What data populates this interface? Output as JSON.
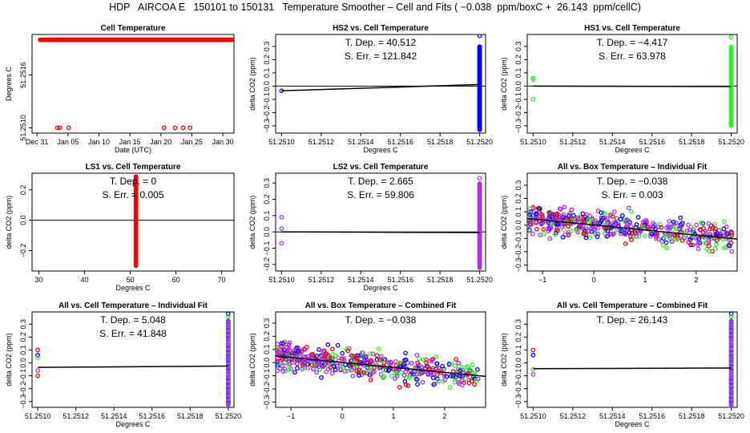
{
  "header": {
    "title": "HDP   AIRCOA E   150101 to 150131   Temperature Smoother – Cell and Fits ( −0.038  ppm/boxC +  26.143  ppm/cellC)"
  },
  "colors": {
    "red": "#ff0000",
    "blue": "#0000ff",
    "green": "#33ee33",
    "purple": "#aa33ee",
    "navy": "#000080"
  },
  "chart_data": [
    {
      "type": "scatter",
      "title": "Cell Temperature",
      "xlabel": "Date (UTC)",
      "ylabel": "Degrees C",
      "x_ticks": [
        "Dec 31",
        "Jan 05",
        "Jan 10",
        "Jan 15",
        "Jan 20",
        "Jan 25",
        "Jan 30"
      ],
      "x_tick_values": [
        0,
        5,
        10,
        15,
        20,
        25,
        30
      ],
      "y_ticks": [
        "51.2510",
        "51.2516"
      ],
      "y_tick_values": [
        51.251,
        51.2516
      ],
      "xlim": [
        -0.8,
        31.8
      ],
      "ylim": [
        51.25094,
        51.25206
      ],
      "series": [
        {
          "color": "red",
          "marker": "circle",
          "dense_x_range": [
            0.5,
            31.5
          ],
          "dense_y": 51.252,
          "points": [
            [
              3.3,
              51.251
            ],
            [
              3.7,
              51.251
            ],
            [
              5.1,
              51.251
            ],
            [
              20.5,
              51.251
            ],
            [
              22.3,
              51.251
            ],
            [
              23.6,
              51.251
            ],
            [
              24.7,
              51.251
            ]
          ]
        }
      ],
      "annotations": []
    },
    {
      "type": "scatter",
      "title": "HS2 vs. Cell Temperature",
      "xlabel": "Degrees C",
      "ylabel": "delta CO2 (ppm)",
      "x_ticks": [
        "51.2510",
        "51.2512",
        "51.2514",
        "51.2516",
        "51.2518",
        "51.2520"
      ],
      "x_tick_values": [
        51.251,
        51.2512,
        51.2514,
        51.2516,
        51.2518,
        51.252
      ],
      "y_ticks": [
        "−0.3",
        "−0.2",
        "−0.1",
        "0.0",
        "0.1",
        "0.2",
        "0.3"
      ],
      "y_tick_values": [
        -0.3,
        -0.2,
        -0.1,
        0,
        0.1,
        0.2,
        0.3
      ],
      "xlim": [
        51.25097,
        51.25203
      ],
      "ylim": [
        -0.355,
        0.39
      ],
      "hline": 0,
      "fit_line": [
        [
          51.251,
          -0.035
        ],
        [
          51.252,
          0.012
        ]
      ],
      "series": [
        {
          "color": "blue",
          "marker": "circle",
          "points": [
            [
              51.251,
              -0.035
            ]
          ],
          "column_x": 51.252,
          "column_y_range": [
            -0.33,
            0.3
          ],
          "column_extra": [
            0.38
          ]
        }
      ],
      "annotations": [
        "T. Dep. = 40.512",
        "S. Err. = 121.842"
      ]
    },
    {
      "type": "scatter",
      "title": "HS1 vs. Cell Temperature",
      "xlabel": "Degrees C",
      "ylabel": "delta CO2 (ppm)",
      "x_ticks": [
        "51.2510",
        "51.2512",
        "51.2514",
        "51.2516",
        "51.2518",
        "51.2520"
      ],
      "x_tick_values": [
        51.251,
        51.2512,
        51.2514,
        51.2516,
        51.2518,
        51.252
      ],
      "y_ticks": [
        "−0.3",
        "−0.2",
        "−0.1",
        "0.0",
        "0.1",
        "0.2",
        "0.3"
      ],
      "y_tick_values": [
        -0.3,
        -0.2,
        -0.1,
        0,
        0.1,
        0.2,
        0.3
      ],
      "xlim": [
        51.25097,
        51.25203
      ],
      "ylim": [
        -0.355,
        0.39
      ],
      "hline": 0,
      "fit_line": [
        [
          51.251,
          0.0
        ],
        [
          51.252,
          -0.003
        ]
      ],
      "series": [
        {
          "color": "green",
          "marker": "circle",
          "points": [
            [
              51.251,
              0.05
            ],
            [
              51.251,
              0.06
            ],
            [
              51.251,
              -0.1
            ]
          ],
          "column_x": 51.252,
          "column_y_range": [
            -0.3,
            0.3
          ],
          "column_extra": [
            0.37
          ]
        }
      ],
      "annotations": [
        "T. Dep. = −4.417",
        "S. Err. = 63.978"
      ]
    },
    {
      "type": "scatter",
      "title": "LS1 vs. Cell Temperature",
      "xlabel": "Degrees C",
      "ylabel": "delta CO2 (ppm)",
      "x_ticks": [
        "30",
        "40",
        "50",
        "60",
        "70"
      ],
      "x_tick_values": [
        30,
        40,
        50,
        60,
        70
      ],
      "y_ticks": [
        "−0.2",
        "0.0",
        "0.2"
      ],
      "y_tick_values": [
        -0.2,
        0,
        0.2
      ],
      "xlim": [
        28.5,
        72.7
      ],
      "ylim": [
        -0.335,
        0.31
      ],
      "hline": 0,
      "fit_line": null,
      "series": [
        {
          "color": "red",
          "marker": "circle",
          "points": [],
          "column_x": 51.252,
          "column_y_range": [
            -0.3,
            0.29
          ],
          "column_extra": []
        }
      ],
      "annotations": [
        "T. Dep. = 0",
        "S. Err. = 0.005"
      ]
    },
    {
      "type": "scatter",
      "title": "LS2 vs. Cell Temperature",
      "xlabel": "Degrees C",
      "ylabel": "delta CO2 (ppm)",
      "x_ticks": [
        "51.2510",
        "51.2512",
        "51.2514",
        "51.2516",
        "51.2518",
        "51.2520"
      ],
      "x_tick_values": [
        51.251,
        51.2512,
        51.2514,
        51.2516,
        51.2518,
        51.252
      ],
      "y_ticks": [
        "−0.2",
        "−0.1",
        "0.0",
        "0.1",
        "0.2",
        "0.3"
      ],
      "y_tick_values": [
        -0.2,
        -0.1,
        0,
        0.1,
        0.2,
        0.3
      ],
      "xlim": [
        51.25097,
        51.25203
      ],
      "ylim": [
        -0.24,
        0.36
      ],
      "hline": 0,
      "fit_line": [
        [
          51.251,
          0.0
        ],
        [
          51.252,
          -0.004
        ]
      ],
      "series": [
        {
          "color": "purple",
          "marker": "circle",
          "points": [
            [
              51.251,
              0.09
            ],
            [
              51.251,
              0.02
            ],
            [
              51.251,
              -0.07
            ]
          ],
          "column_x": 51.252,
          "column_y_range": [
            -0.22,
            0.3
          ],
          "column_extra": [
            0.33
          ]
        }
      ],
      "annotations": [
        "T. Dep. = 2.665",
        "S. Err. = 59.806"
      ]
    },
    {
      "type": "scatter",
      "title": "All vs. Box Temperature – Individual Fit",
      "xlabel": "",
      "ylabel": "delta CO2 (ppm)",
      "x_ticks": [
        "−1",
        "0",
        "1",
        "2"
      ],
      "x_tick_values": [
        -1,
        0,
        1,
        2
      ],
      "y_ticks": [
        "−0.3",
        "−0.2",
        "−0.1",
        "0.0",
        "0.1",
        "0.2",
        "0.3"
      ],
      "y_tick_values": [
        -0.3,
        -0.2,
        -0.1,
        0,
        0.1,
        0.2,
        0.3
      ],
      "xlim": [
        -1.3,
        2.8
      ],
      "ylim": [
        -0.345,
        0.39
      ],
      "hline": null,
      "fit_line": [
        [
          -1.3,
          0.05
        ],
        [
          2.8,
          -0.105
        ]
      ],
      "cloud": {
        "x_range": [
          -1.3,
          2.7
        ],
        "y_spread": 0.16,
        "n": 520,
        "seed": 11
      },
      "series": [
        {
          "color": "red"
        },
        {
          "color": "blue"
        },
        {
          "color": "green"
        },
        {
          "color": "purple"
        }
      ],
      "annotations": [
        "T. Dep. = −0.038",
        "S. Err. = 0.003"
      ]
    },
    {
      "type": "scatter",
      "title": "All vs. Cell Temperature – Individual Fit",
      "xlabel": "Degrees C",
      "ylabel": "delta CO2 (ppm)",
      "x_ticks": [
        "51.2510",
        "51.2512",
        "51.2514",
        "51.2516",
        "51.2518",
        "51.2520"
      ],
      "x_tick_values": [
        51.251,
        51.2512,
        51.2514,
        51.2516,
        51.2518,
        51.252
      ],
      "y_ticks": [
        "−0.3",
        "−0.2",
        "−0.1",
        "0.0",
        "0.1",
        "0.2",
        "0.3"
      ],
      "y_tick_values": [
        -0.3,
        -0.2,
        -0.1,
        0,
        0.1,
        0.2,
        0.3
      ],
      "xlim": [
        51.25097,
        51.25203
      ],
      "ylim": [
        -0.345,
        0.395
      ],
      "hline": null,
      "fit_line": [
        [
          51.251,
          -0.035
        ],
        [
          51.252,
          -0.025
        ]
      ],
      "series": [
        {
          "color": "multi",
          "marker": "circle",
          "points": [
            [
              51.251,
              0.1
            ],
            [
              51.251,
              0.06
            ],
            [
              51.251,
              0.04
            ],
            [
              51.251,
              -0.06
            ],
            [
              51.251,
              -0.1
            ]
          ],
          "column_x": 51.252,
          "column_y_range": [
            -0.33,
            0.33
          ],
          "column_extra": [
            0.38,
            0.36
          ]
        }
      ],
      "annotations": [
        "T. Dep. = 5.048",
        "S. Err. = 41.848"
      ]
    },
    {
      "type": "scatter",
      "title": "All vs. Box Temperature – Combined Fit",
      "xlabel": "",
      "ylabel": "delta CO2 (ppm)",
      "x_ticks": [
        "−1",
        "0",
        "1",
        "2"
      ],
      "x_tick_values": [
        -1,
        0,
        1,
        2
      ],
      "y_ticks": [
        "−0.3",
        "−0.2",
        "−0.1",
        "0.0",
        "0.1",
        "0.2",
        "0.3"
      ],
      "y_tick_values": [
        -0.3,
        -0.2,
        -0.1,
        0,
        0.1,
        0.2,
        0.3
      ],
      "xlim": [
        -1.3,
        2.8
      ],
      "ylim": [
        -0.34,
        0.385
      ],
      "hline": null,
      "fit_line": [
        [
          -1.3,
          0.05
        ],
        [
          2.8,
          -0.105
        ]
      ],
      "cloud": {
        "x_range": [
          -1.3,
          2.7
        ],
        "y_spread": 0.16,
        "n": 520,
        "seed": 29
      },
      "series": [
        {
          "color": "red"
        },
        {
          "color": "blue"
        },
        {
          "color": "green"
        },
        {
          "color": "purple"
        }
      ],
      "annotations": [
        "T. Dep. = −0.038"
      ]
    },
    {
      "type": "scatter",
      "title": "All vs. Cell Temperature – Combined Fit",
      "xlabel": "Degrees C",
      "ylabel": "delta CO2 (ppm)",
      "x_ticks": [
        "51.2510",
        "51.2512",
        "51.2514",
        "51.2516",
        "51.2518",
        "51.2520"
      ],
      "x_tick_values": [
        51.251,
        51.2512,
        51.2514,
        51.2516,
        51.2518,
        51.252
      ],
      "y_ticks": [
        "−0.3",
        "−0.2",
        "−0.1",
        "0.0",
        "0.1",
        "0.2",
        "0.3"
      ],
      "y_tick_values": [
        -0.3,
        -0.2,
        -0.1,
        0,
        0.1,
        0.2,
        0.3
      ],
      "xlim": [
        51.25097,
        51.25203
      ],
      "ylim": [
        -0.345,
        0.395
      ],
      "hline": null,
      "fit_line": [
        [
          51.251,
          -0.045
        ],
        [
          51.252,
          -0.04
        ]
      ],
      "series": [
        {
          "color": "multi",
          "marker": "circle",
          "points": [
            [
              51.251,
              0.1
            ],
            [
              51.251,
              0.06
            ],
            [
              51.251,
              -0.05
            ],
            [
              51.251,
              -0.09
            ]
          ],
          "column_x": 51.252,
          "column_y_range": [
            -0.33,
            0.33
          ],
          "column_extra": [
            0.38,
            0.36
          ]
        }
      ],
      "annotations": [
        "T. Dep. = 26.143"
      ]
    }
  ]
}
